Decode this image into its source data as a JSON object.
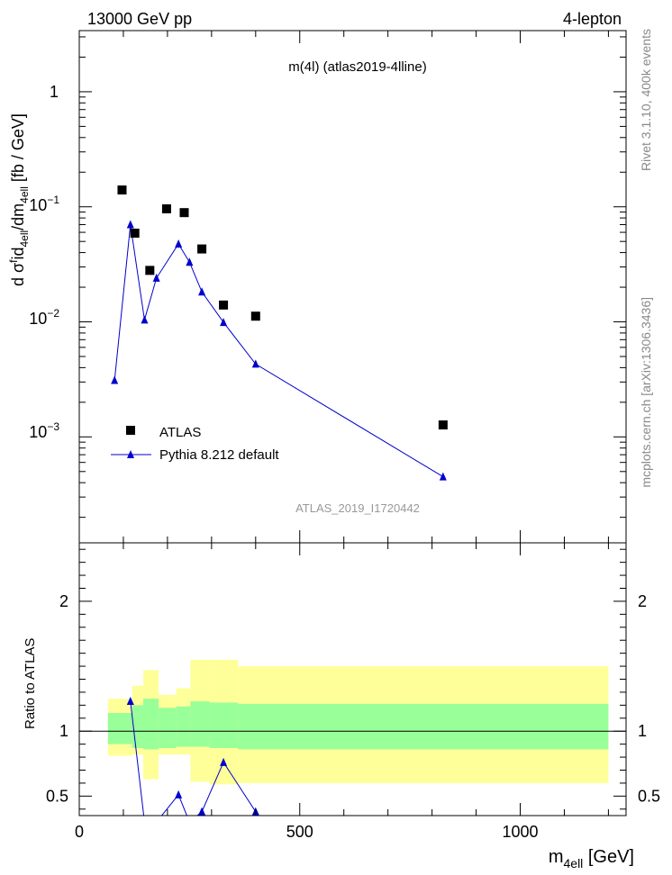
{
  "header": {
    "left": "13000 GeV pp",
    "right": "4-lepton"
  },
  "side": {
    "rivet": "Rivet 3.1.10,  400k events",
    "mcplots": "mcplots.cern.ch [arXiv:1306.3436]"
  },
  "colors": {
    "data": "#000000",
    "mc": "#0000cc",
    "band_outer": "#ffff99",
    "band_inner": "#99ff99"
  },
  "chart_data": [
    {
      "type": "scatter",
      "title": "m(4l) (atlas2019-4lline)",
      "watermark": "ATLAS_2019_I1720442",
      "ylabel": "d σ^{f}id_{4ell}/dm_{4ell} [fb / GeV]",
      "yscale": "log",
      "ylim": [
        0.00012,
        3.4
      ],
      "xlim": [
        0,
        1240
      ],
      "ytick_labels": [
        "1",
        "10^-1",
        "10^-2",
        "10^-3"
      ],
      "legend_location": "lower-left",
      "series": [
        {
          "name": "ATLAS",
          "style": "markers",
          "x": [
            97,
            126,
            160,
            198,
            238,
            278,
            327,
            400,
            825
          ],
          "y": [
            0.14,
            0.059,
            0.028,
            0.096,
            0.089,
            0.043,
            0.014,
            0.0112,
            0.00127
          ]
        },
        {
          "name": "Pythia 8.212 default",
          "style": "line+markers",
          "x": [
            80,
            116,
            148,
            175,
            225,
            250,
            278,
            327,
            400,
            825
          ],
          "y": [
            0.0031,
            0.07,
            0.0104,
            0.024,
            0.0475,
            0.033,
            0.0182,
            0.0099,
            0.0043,
            0.00045
          ]
        }
      ]
    },
    {
      "type": "line",
      "ylabel": "Ratio to ATLAS",
      "xlabel": "m_{4ell} [GeV]",
      "xlim": [
        0,
        1240
      ],
      "ylim": [
        0.35,
        2.45
      ],
      "xticks": [
        0,
        500,
        1000
      ],
      "yticks": [
        0.5,
        1,
        2
      ],
      "reference_line": 1,
      "bands": {
        "x_edges": [
          65,
          120,
          145,
          180,
          220,
          252,
          295,
          360,
          1200
        ],
        "inner_low": [
          0.9,
          0.87,
          0.86,
          0.87,
          0.88,
          0.88,
          0.87,
          0.86
        ],
        "inner_high": [
          1.14,
          1.2,
          1.25,
          1.18,
          1.19,
          1.23,
          1.22,
          1.21
        ],
        "outer_low": [
          0.81,
          0.82,
          0.63,
          0.82,
          0.82,
          0.61,
          0.59,
          0.6
        ],
        "outer_high": [
          1.25,
          1.35,
          1.47,
          1.28,
          1.33,
          1.55,
          1.55,
          1.5
        ]
      },
      "series": [
        {
          "name": "Pythia 8.212 default",
          "x": [
            116,
            148,
            175,
            225,
            250,
            278,
            327,
            400
          ],
          "y": [
            1.23,
            0.3,
            0.3,
            0.51,
            0.3,
            0.38,
            0.76,
            0.38
          ]
        }
      ]
    }
  ]
}
